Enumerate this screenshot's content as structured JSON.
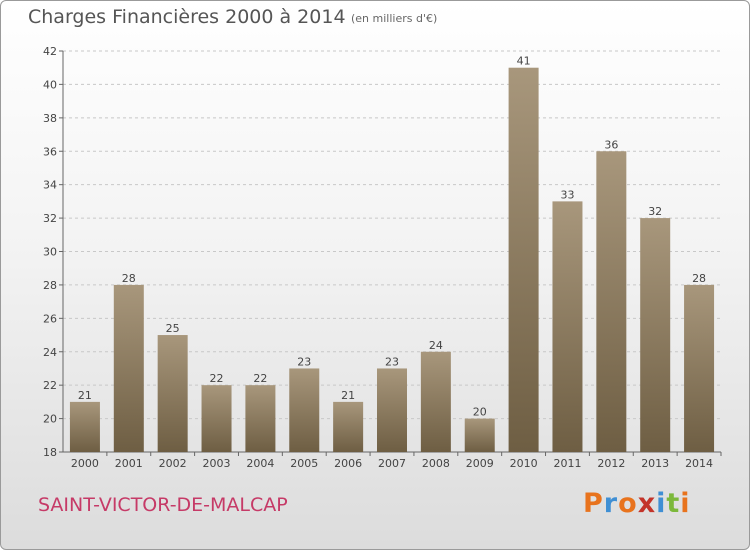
{
  "header": {
    "title": "Charges Financières 2000 à 2014",
    "subtitle": "(en milliers d'€)"
  },
  "footer": {
    "commune": "SAINT-VICTOR-DE-MALCAP",
    "logo_text": "Proxiti",
    "logo_colors": [
      "#e8731d",
      "#3f8fd4",
      "#e8731d",
      "#c3342a",
      "#3f8fd4",
      "#7cb83b",
      "#e8731d"
    ]
  },
  "colors": {
    "bar_top": "#a8977c",
    "bar_bottom": "#6e5e43",
    "grid": "#c8c8c8",
    "axis_text": "#444444"
  },
  "chart_data": {
    "type": "bar",
    "title": "Charges Financières 2000 à 2014",
    "subtitle": "(en milliers d'€)",
    "categories": [
      "2000",
      "2001",
      "2002",
      "2003",
      "2004",
      "2005",
      "2006",
      "2007",
      "2008",
      "2009",
      "2010",
      "2011",
      "2012",
      "2013",
      "2014"
    ],
    "values": [
      21,
      28,
      25,
      22,
      22,
      23,
      21,
      23,
      24,
      20,
      41,
      33,
      36,
      32,
      28
    ],
    "ylim": [
      18,
      42
    ],
    "yticks": [
      18,
      20,
      22,
      24,
      26,
      28,
      30,
      32,
      34,
      36,
      38,
      40,
      42
    ],
    "grid": true,
    "data_labels": true
  }
}
